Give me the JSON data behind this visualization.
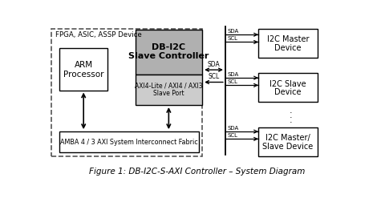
{
  "title": "Figure 1: DB-I2C-S-AXI Controller – System Diagram",
  "bg_color": "#ffffff",
  "fpga_label": "FPGA, ASIC, ASSP Device",
  "arm_label1": "ARM",
  "arm_label2": "Processor",
  "db_top1": "DB-I2C",
  "db_top2": "Slave Controller",
  "db_bot1": "AXI4-Lite / AXI4 / AXI3",
  "db_bot2": "Slave Port",
  "amba_label": "AMBA 4 / 3 AXI System Interconnect Fabric",
  "i2c_m1": "I2C Master",
  "i2c_m2": "Device",
  "i2c_s1": "I2C Slave",
  "i2c_s2": "Device",
  "i2c_ms1": "I2C Master/",
  "i2c_ms2": "Slave Device",
  "gray_fill": "#b0b0b0",
  "lgray_fill": "#cccccc",
  "white_fill": "#ffffff",
  "sda": "SDA",
  "scl": "SCL"
}
